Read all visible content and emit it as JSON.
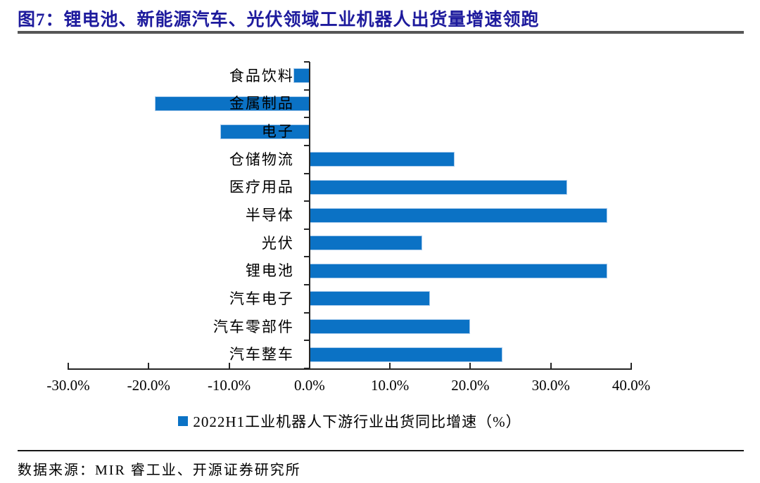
{
  "figure": {
    "title": "图7：锂电池、新能源汽车、光伏领域工业机器人出货量增速领跑",
    "title_color": "#1e1b9d",
    "source": "数据来源：MIR 睿工业、开源证券研究所"
  },
  "chart_data": {
    "type": "bar",
    "orientation": "horizontal",
    "title": "",
    "legend": "2022H1工业机器人下游行业出货同比增速（%）",
    "legend_position": "bottom-center",
    "categories": [
      "食品饮料",
      "金属制品",
      "电子",
      "仓储物流",
      "医疗用品",
      "半导体",
      "光伏",
      "锂电池",
      "汽车电子",
      "汽车零部件",
      "汽车整车"
    ],
    "values": [
      -2.0,
      -19.2,
      -11.1,
      18.0,
      32.0,
      37.0,
      14.0,
      37.0,
      15.0,
      20.0,
      24.0
    ],
    "unit": "%",
    "xlim": [
      -30,
      40
    ],
    "x_ticks": [
      -30,
      -20,
      -10,
      0,
      10,
      20,
      30,
      40
    ],
    "x_tick_labels": [
      "-30.0%",
      "-20.0%",
      "-10.0%",
      "0.0%",
      "10.0%",
      "20.0%",
      "30.0%",
      "40.0%"
    ],
    "grid": false,
    "bar_color": "#0b72c5",
    "bar_border_color": "#a9cbec",
    "axis_color": "#262626"
  }
}
